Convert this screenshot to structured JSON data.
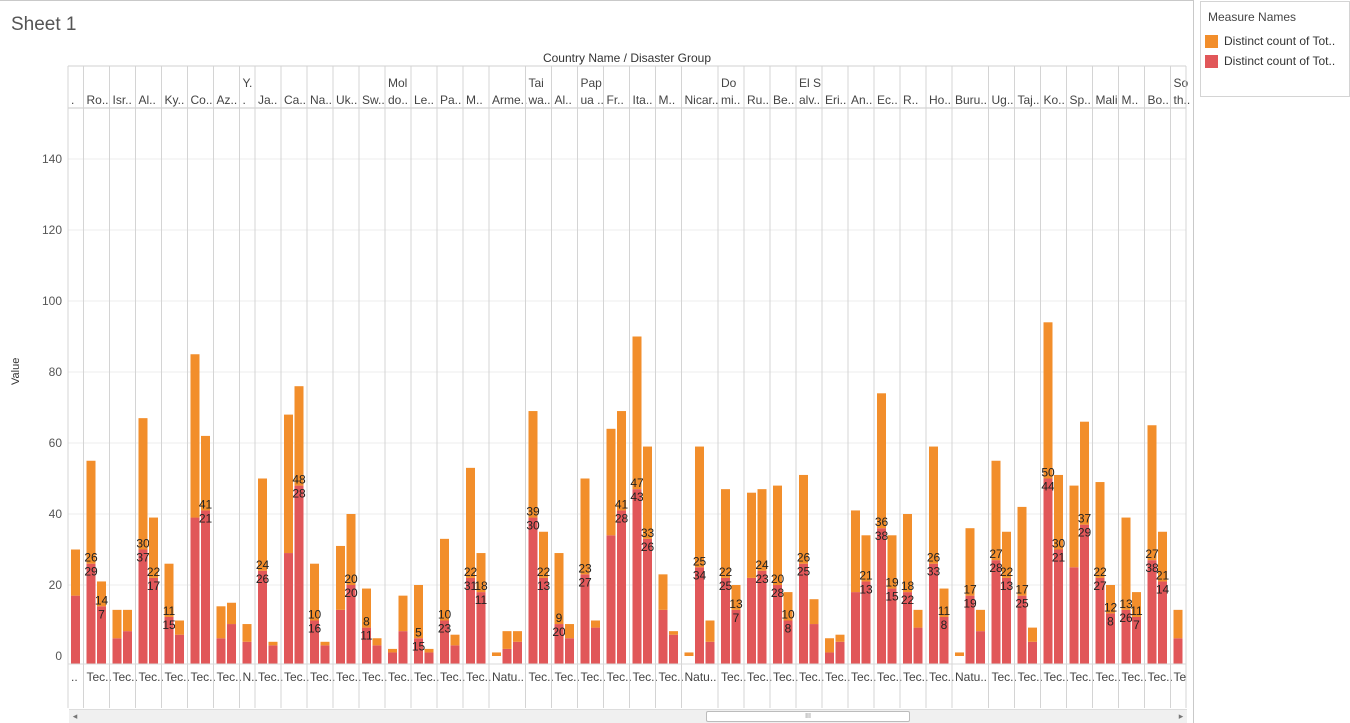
{
  "sheet_title": "Sheet 1",
  "legend": {
    "title": "Measure Names",
    "items": [
      {
        "label": "Distinct count of Tot..",
        "color": "#f28e2b"
      },
      {
        "label": "Distinct count of Tot..",
        "color": "#e15759"
      }
    ]
  },
  "scrollbar": {
    "thumb_label": "III",
    "left_arrow": "◂",
    "right_arrow": "▸"
  },
  "chart_data": {
    "type": "bar",
    "stacked": true,
    "title": "",
    "header_title": "Country Name / Disaster Group",
    "xlabel": "",
    "ylabel": "Value",
    "ylim": [
      0,
      156
    ],
    "yticks": [
      0,
      20,
      40,
      60,
      80,
      100,
      120,
      140
    ],
    "grid": true,
    "legend_position": "right",
    "series_colors": [
      "#e15759",
      "#f28e2b"
    ],
    "groups": [
      {
        "country": [
          "."
        ],
        "group": "..",
        "bars": [
          {
            "red": 17,
            "orange": 13
          }
        ]
      },
      {
        "country": [
          "Ro.."
        ],
        "group": "Tec..",
        "bars": [
          {
            "red": 26,
            "orange": 29,
            "labels": [
              "26",
              "29"
            ]
          },
          {
            "red": 14,
            "orange": 7,
            "labels": [
              "14",
              "7"
            ]
          }
        ]
      },
      {
        "country": [
          "Isr.."
        ],
        "group": "Tec..",
        "bars": [
          {
            "red": 5,
            "orange": 8
          },
          {
            "red": 7,
            "orange": 6
          }
        ]
      },
      {
        "country": [
          "Al.."
        ],
        "group": "Tec..",
        "bars": [
          {
            "red": 30,
            "orange": 37,
            "labels": [
              "30",
              "37"
            ]
          },
          {
            "red": 22,
            "orange": 17,
            "labels": [
              "22",
              "17"
            ]
          }
        ]
      },
      {
        "country": [
          "Ky.."
        ],
        "group": "Tec..",
        "bars": [
          {
            "red": 11,
            "orange": 15,
            "labels": [
              "11",
              "15"
            ]
          },
          {
            "red": 6,
            "orange": 4
          }
        ]
      },
      {
        "country": [
          "Co.."
        ],
        "group": "Tec..",
        "bars": [
          {
            "red": 39,
            "orange": 46
          },
          {
            "red": 41,
            "orange": 21,
            "labels": [
              "41",
              "21"
            ]
          }
        ]
      },
      {
        "country": [
          "Az.."
        ],
        "group": "Tec..",
        "bars": [
          {
            "red": 5,
            "orange": 9
          },
          {
            "red": 9,
            "orange": 6
          }
        ]
      },
      {
        "country": [
          "Y.",
          "."
        ],
        "group": "N..",
        "bars": [
          {
            "red": 4,
            "orange": 5
          }
        ]
      },
      {
        "country": [
          "Ja.."
        ],
        "group": "Tec..",
        "bars": [
          {
            "red": 24,
            "orange": 26,
            "labels": [
              "24",
              "26"
            ]
          },
          {
            "red": 3,
            "orange": 1
          }
        ]
      },
      {
        "country": [
          "Ca.."
        ],
        "group": "Tec..",
        "bars": [
          {
            "red": 29,
            "orange": 39
          },
          {
            "red": 48,
            "orange": 28,
            "labels": [
              "48",
              "28"
            ]
          }
        ]
      },
      {
        "country": [
          "Na.."
        ],
        "group": "Tec..",
        "bars": [
          {
            "red": 10,
            "orange": 16,
            "labels": [
              "10",
              "16"
            ]
          },
          {
            "red": 3,
            "orange": 1
          }
        ]
      },
      {
        "country": [
          "Uk.."
        ],
        "group": "Tec..",
        "bars": [
          {
            "red": 13,
            "orange": 18
          },
          {
            "red": 20,
            "orange": 20,
            "labels": [
              "20",
              "20"
            ]
          }
        ]
      },
      {
        "country": [
          "Sw.."
        ],
        "group": "Tec..",
        "bars": [
          {
            "red": 8,
            "orange": 11,
            "labels": [
              "8",
              "11"
            ]
          },
          {
            "red": 3,
            "orange": 2
          }
        ]
      },
      {
        "country": [
          "Mol",
          "do.."
        ],
        "group": "Tec..",
        "bars": [
          {
            "red": 1,
            "orange": 1
          },
          {
            "red": 7,
            "orange": 10
          }
        ]
      },
      {
        "country": [
          "Le.."
        ],
        "group": "Tec..",
        "bars": [
          {
            "red": 5,
            "orange": 15,
            "labels": [
              "5",
              "15"
            ]
          },
          {
            "red": 1,
            "orange": 1
          }
        ]
      },
      {
        "country": [
          "Pa.."
        ],
        "group": "Tec..",
        "bars": [
          {
            "red": 10,
            "orange": 23,
            "labels": [
              "10",
              "23"
            ]
          },
          {
            "red": 3,
            "orange": 3
          }
        ]
      },
      {
        "country": [
          "M.."
        ],
        "group": "Tec..",
        "bars": [
          {
            "red": 22,
            "orange": 31,
            "labels": [
              "22",
              "31"
            ]
          },
          {
            "red": 18,
            "orange": 11,
            "labels": [
              "18",
              "11"
            ]
          }
        ]
      },
      {
        "country": [
          "Arme.."
        ],
        "group": "Natu..",
        "bars": [
          {
            "red": 0,
            "orange": 1
          },
          {
            "red": 2,
            "orange": 5
          },
          {
            "red": 4,
            "orange": 3
          }
        ]
      },
      {
        "country": [
          "Tai",
          "wa.."
        ],
        "group": "Tec..",
        "bars": [
          {
            "red": 39,
            "orange": 30,
            "labels": [
              "39",
              "30"
            ]
          },
          {
            "red": 22,
            "orange": 13,
            "labels": [
              "22",
              "13"
            ]
          }
        ]
      },
      {
        "country": [
          "Al.."
        ],
        "group": "Tec..",
        "bars": [
          {
            "red": 9,
            "orange": 20,
            "labels": [
              "9",
              "20"
            ]
          },
          {
            "red": 5,
            "orange": 4
          }
        ]
      },
      {
        "country": [
          "Pap",
          "ua .."
        ],
        "group": "Tec..",
        "bars": [
          {
            "red": 23,
            "orange": 27,
            "labels": [
              "23",
              "27"
            ]
          },
          {
            "red": 8,
            "orange": 2
          }
        ]
      },
      {
        "country": [
          "Fr.."
        ],
        "group": "Tec..",
        "bars": [
          {
            "red": 34,
            "orange": 30
          },
          {
            "red": 41,
            "orange": 28,
            "labels": [
              "41",
              "28"
            ]
          }
        ]
      },
      {
        "country": [
          "Ita.."
        ],
        "group": "Tec..",
        "bars": [
          {
            "red": 47,
            "orange": 43,
            "labels": [
              "47",
              "43"
            ]
          },
          {
            "red": 33,
            "orange": 26,
            "labels": [
              "33",
              "26"
            ]
          }
        ]
      },
      {
        "country": [
          "M.."
        ],
        "group": "Tec..",
        "bars": [
          {
            "red": 13,
            "orange": 10
          },
          {
            "red": 6,
            "orange": 1
          }
        ]
      },
      {
        "country": [
          "Nicar.."
        ],
        "group": "Natu..",
        "bars": [
          {
            "red": 0,
            "orange": 1
          },
          {
            "red": 25,
            "orange": 34,
            "labels": [
              "25",
              "34"
            ]
          },
          {
            "red": 4,
            "orange": 6
          }
        ]
      },
      {
        "country": [
          "Do",
          "mi.."
        ],
        "group": "Tec..",
        "bars": [
          {
            "red": 22,
            "orange": 25,
            "labels": [
              "22",
              "25"
            ]
          },
          {
            "red": 13,
            "orange": 7,
            "labels": [
              "13",
              "7"
            ]
          }
        ]
      },
      {
        "country": [
          "Ru.."
        ],
        "group": "Tec..",
        "bars": [
          {
            "red": 22,
            "orange": 24
          },
          {
            "red": 24,
            "orange": 23,
            "labels": [
              "24",
              "23"
            ]
          }
        ]
      },
      {
        "country": [
          "Be.."
        ],
        "group": "Tec..",
        "bars": [
          {
            "red": 20,
            "orange": 28,
            "labels": [
              "20",
              "28"
            ]
          },
          {
            "red": 10,
            "orange": 8,
            "labels": [
              "10",
              "8"
            ]
          }
        ]
      },
      {
        "country": [
          "El S",
          "alv.."
        ],
        "group": "Tec..",
        "bars": [
          {
            "red": 26,
            "orange": 25,
            "labels": [
              "26",
              "25"
            ]
          },
          {
            "red": 9,
            "orange": 7
          }
        ]
      },
      {
        "country": [
          "Eri.."
        ],
        "group": "Tec..",
        "bars": [
          {
            "red": 1,
            "orange": 4
          },
          {
            "red": 4,
            "orange": 2
          }
        ]
      },
      {
        "country": [
          "An.."
        ],
        "group": "Tec..",
        "bars": [
          {
            "red": 18,
            "orange": 23
          },
          {
            "red": 21,
            "orange": 13,
            "labels": [
              "21",
              "13"
            ]
          }
        ]
      },
      {
        "country": [
          "Ec.."
        ],
        "group": "Tec..",
        "bars": [
          {
            "red": 36,
            "orange": 38,
            "labels": [
              "36",
              "38"
            ]
          },
          {
            "red": 19,
            "orange": 15,
            "labels": [
              "19",
              "15"
            ]
          }
        ]
      },
      {
        "country": [
          "R.."
        ],
        "group": "Tec..",
        "bars": [
          {
            "red": 18,
            "orange": 22,
            "labels": [
              "18",
              "22"
            ]
          },
          {
            "red": 8,
            "orange": 5
          }
        ]
      },
      {
        "country": [
          "Ho.."
        ],
        "group": "Tec..",
        "bars": [
          {
            "red": 26,
            "orange": 33,
            "labels": [
              "26",
              "33"
            ]
          },
          {
            "red": 11,
            "orange": 8,
            "labels": [
              "11",
              "8"
            ]
          }
        ]
      },
      {
        "country": [
          "Buru.."
        ],
        "group": "Natu..",
        "bars": [
          {
            "red": 0,
            "orange": 1
          },
          {
            "red": 17,
            "orange": 19,
            "labels": [
              "17",
              "19"
            ]
          },
          {
            "red": 7,
            "orange": 6
          }
        ]
      },
      {
        "country": [
          "Ug.."
        ],
        "group": "Tec..",
        "bars": [
          {
            "red": 27,
            "orange": 28,
            "labels": [
              "27",
              "28"
            ]
          },
          {
            "red": 22,
            "orange": 13,
            "labels": [
              "22",
              "13"
            ]
          }
        ]
      },
      {
        "country": [
          "Taj.."
        ],
        "group": "Tec..",
        "bars": [
          {
            "red": 17,
            "orange": 25,
            "labels": [
              "17",
              "25"
            ]
          },
          {
            "red": 4,
            "orange": 4
          }
        ]
      },
      {
        "country": [
          "Ko.."
        ],
        "group": "Tec..",
        "bars": [
          {
            "red": 50,
            "orange": 44,
            "labels": [
              "50",
              "44"
            ]
          },
          {
            "red": 30,
            "orange": 21,
            "labels": [
              "30",
              "21"
            ]
          }
        ]
      },
      {
        "country": [
          "Sp.."
        ],
        "group": "Tec..",
        "bars": [
          {
            "red": 25,
            "orange": 23
          },
          {
            "red": 37,
            "orange": 29,
            "labels": [
              "37",
              "29"
            ]
          }
        ]
      },
      {
        "country": [
          "Mali"
        ],
        "group": "Tec..",
        "bars": [
          {
            "red": 22,
            "orange": 27,
            "labels": [
              "22",
              "27"
            ]
          },
          {
            "red": 12,
            "orange": 8,
            "labels": [
              "12",
              "8"
            ]
          }
        ]
      },
      {
        "country": [
          "M.."
        ],
        "group": "Tec..",
        "bars": [
          {
            "red": 13,
            "orange": 26,
            "labels": [
              "13",
              "26"
            ]
          },
          {
            "red": 11,
            "orange": 7,
            "labels": [
              "11",
              "7"
            ]
          }
        ]
      },
      {
        "country": [
          "Bo.."
        ],
        "group": "Tec..",
        "bars": [
          {
            "red": 27,
            "orange": 38,
            "labels": [
              "27",
              "38"
            ]
          },
          {
            "red": 21,
            "orange": 14,
            "labels": [
              "21",
              "14"
            ]
          }
        ]
      },
      {
        "country": [
          "So",
          "th.."
        ],
        "group": "Te",
        "bars": [
          {
            "red": 5,
            "orange": 8
          }
        ]
      }
    ]
  }
}
